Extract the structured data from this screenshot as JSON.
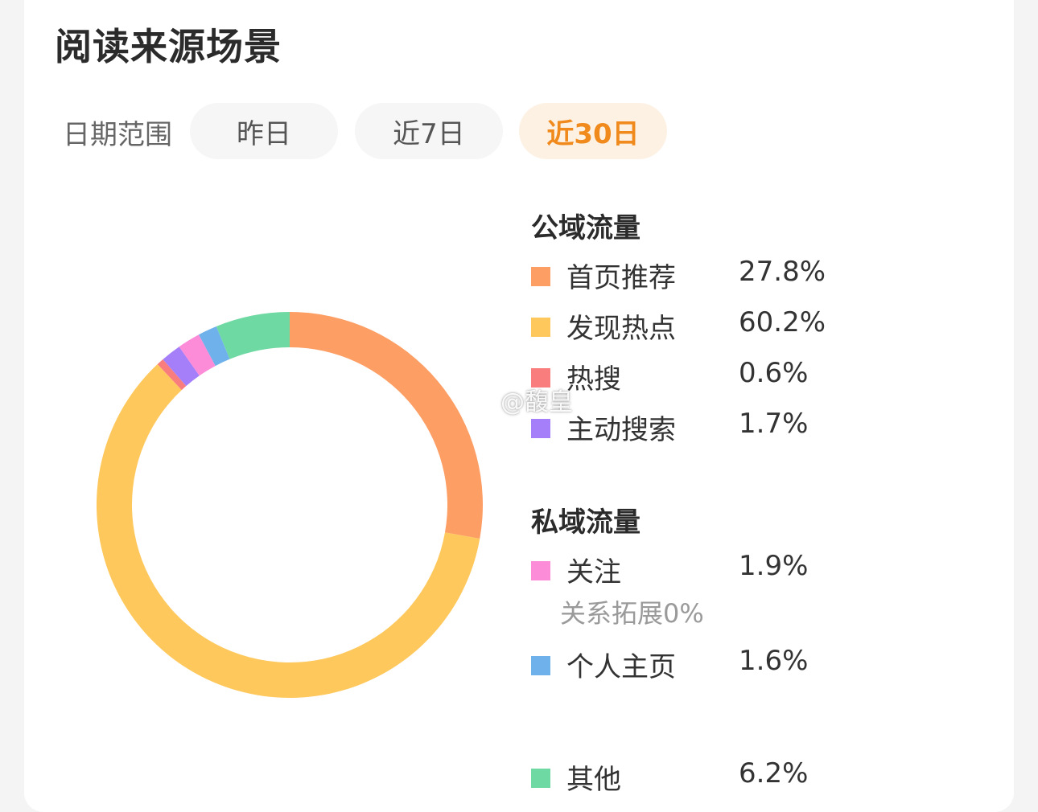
{
  "title": "阅读来源场景",
  "date_range": {
    "label": "日期范围",
    "options": [
      "昨日",
      "近7日",
      "近30日"
    ],
    "selected": "近30日"
  },
  "watermark": "@馥皇",
  "chart_data": {
    "type": "pie",
    "donut": true,
    "start_angle_deg": 0,
    "direction": "clockwise",
    "slices": [
      {
        "name": "首页推荐",
        "value": 27.8,
        "label": "27.8%",
        "color": "#fd9e65",
        "group": "公域流量"
      },
      {
        "name": "发现热点",
        "value": 60.2,
        "label": "60.2%",
        "color": "#fec85c",
        "group": "公域流量"
      },
      {
        "name": "热搜",
        "value": 0.6,
        "label": "0.6%",
        "color": "#fa7d7d",
        "group": "公域流量"
      },
      {
        "name": "主动搜索",
        "value": 1.7,
        "label": "1.7%",
        "color": "#a57ff9",
        "group": "公域流量"
      },
      {
        "name": "关注",
        "value": 1.9,
        "label": "1.9%",
        "color": "#fc8bd8",
        "group": "私域流量"
      },
      {
        "name": "个人主页",
        "value": 1.6,
        "label": "1.6%",
        "color": "#6fb1ea",
        "group": "私域流量"
      },
      {
        "name": "其他",
        "value": 6.2,
        "label": "6.2%",
        "color": "#6ed9a2",
        "group": ""
      }
    ],
    "groups": [
      "公域流量",
      "私域流量"
    ],
    "notes": [
      "关系拓展0%"
    ]
  }
}
